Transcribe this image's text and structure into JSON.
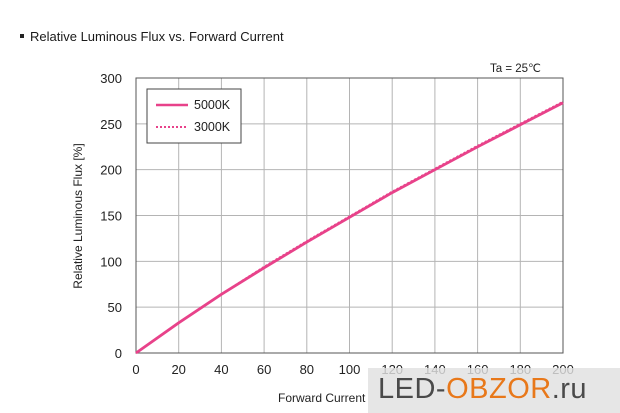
{
  "colors": {
    "series": "#e8428a",
    "grid": "#b4b4b4",
    "text": "#222222",
    "watermark_accent": "#e8781a"
  },
  "chart_data": {
    "type": "line",
    "title": "Relative Luminous Flux vs. Forward Current",
    "annotation": "Ta = 25℃",
    "xlabel": "Forward Current",
    "ylabel": "Relative Luminous Flux [%]",
    "xlim": [
      0,
      200
    ],
    "ylim": [
      0,
      300
    ],
    "xticks": [
      0,
      20,
      40,
      60,
      80,
      100,
      120,
      140,
      160,
      180,
      200
    ],
    "yticks": [
      0,
      50,
      100,
      150,
      200,
      250,
      300
    ],
    "grid": true,
    "legend_position": "top-left",
    "series": [
      {
        "name": "5000K",
        "style": "solid",
        "x": [
          0,
          20,
          40,
          60,
          80,
          100,
          120,
          140,
          160,
          180,
          200
        ],
        "y": [
          0,
          33,
          64,
          93,
          121,
          148,
          175,
          200,
          225,
          249,
          273
        ]
      },
      {
        "name": "3000K",
        "style": "dotted",
        "x": [
          0,
          20,
          40,
          60,
          80,
          100,
          120,
          140,
          160,
          180,
          200
        ],
        "y": [
          0,
          33,
          64,
          94,
          122,
          149,
          176,
          201,
          226,
          250,
          274
        ]
      }
    ]
  },
  "watermark": {
    "prefix": "LED-",
    "accent": "OBZOR",
    "suffix": ".ru"
  }
}
